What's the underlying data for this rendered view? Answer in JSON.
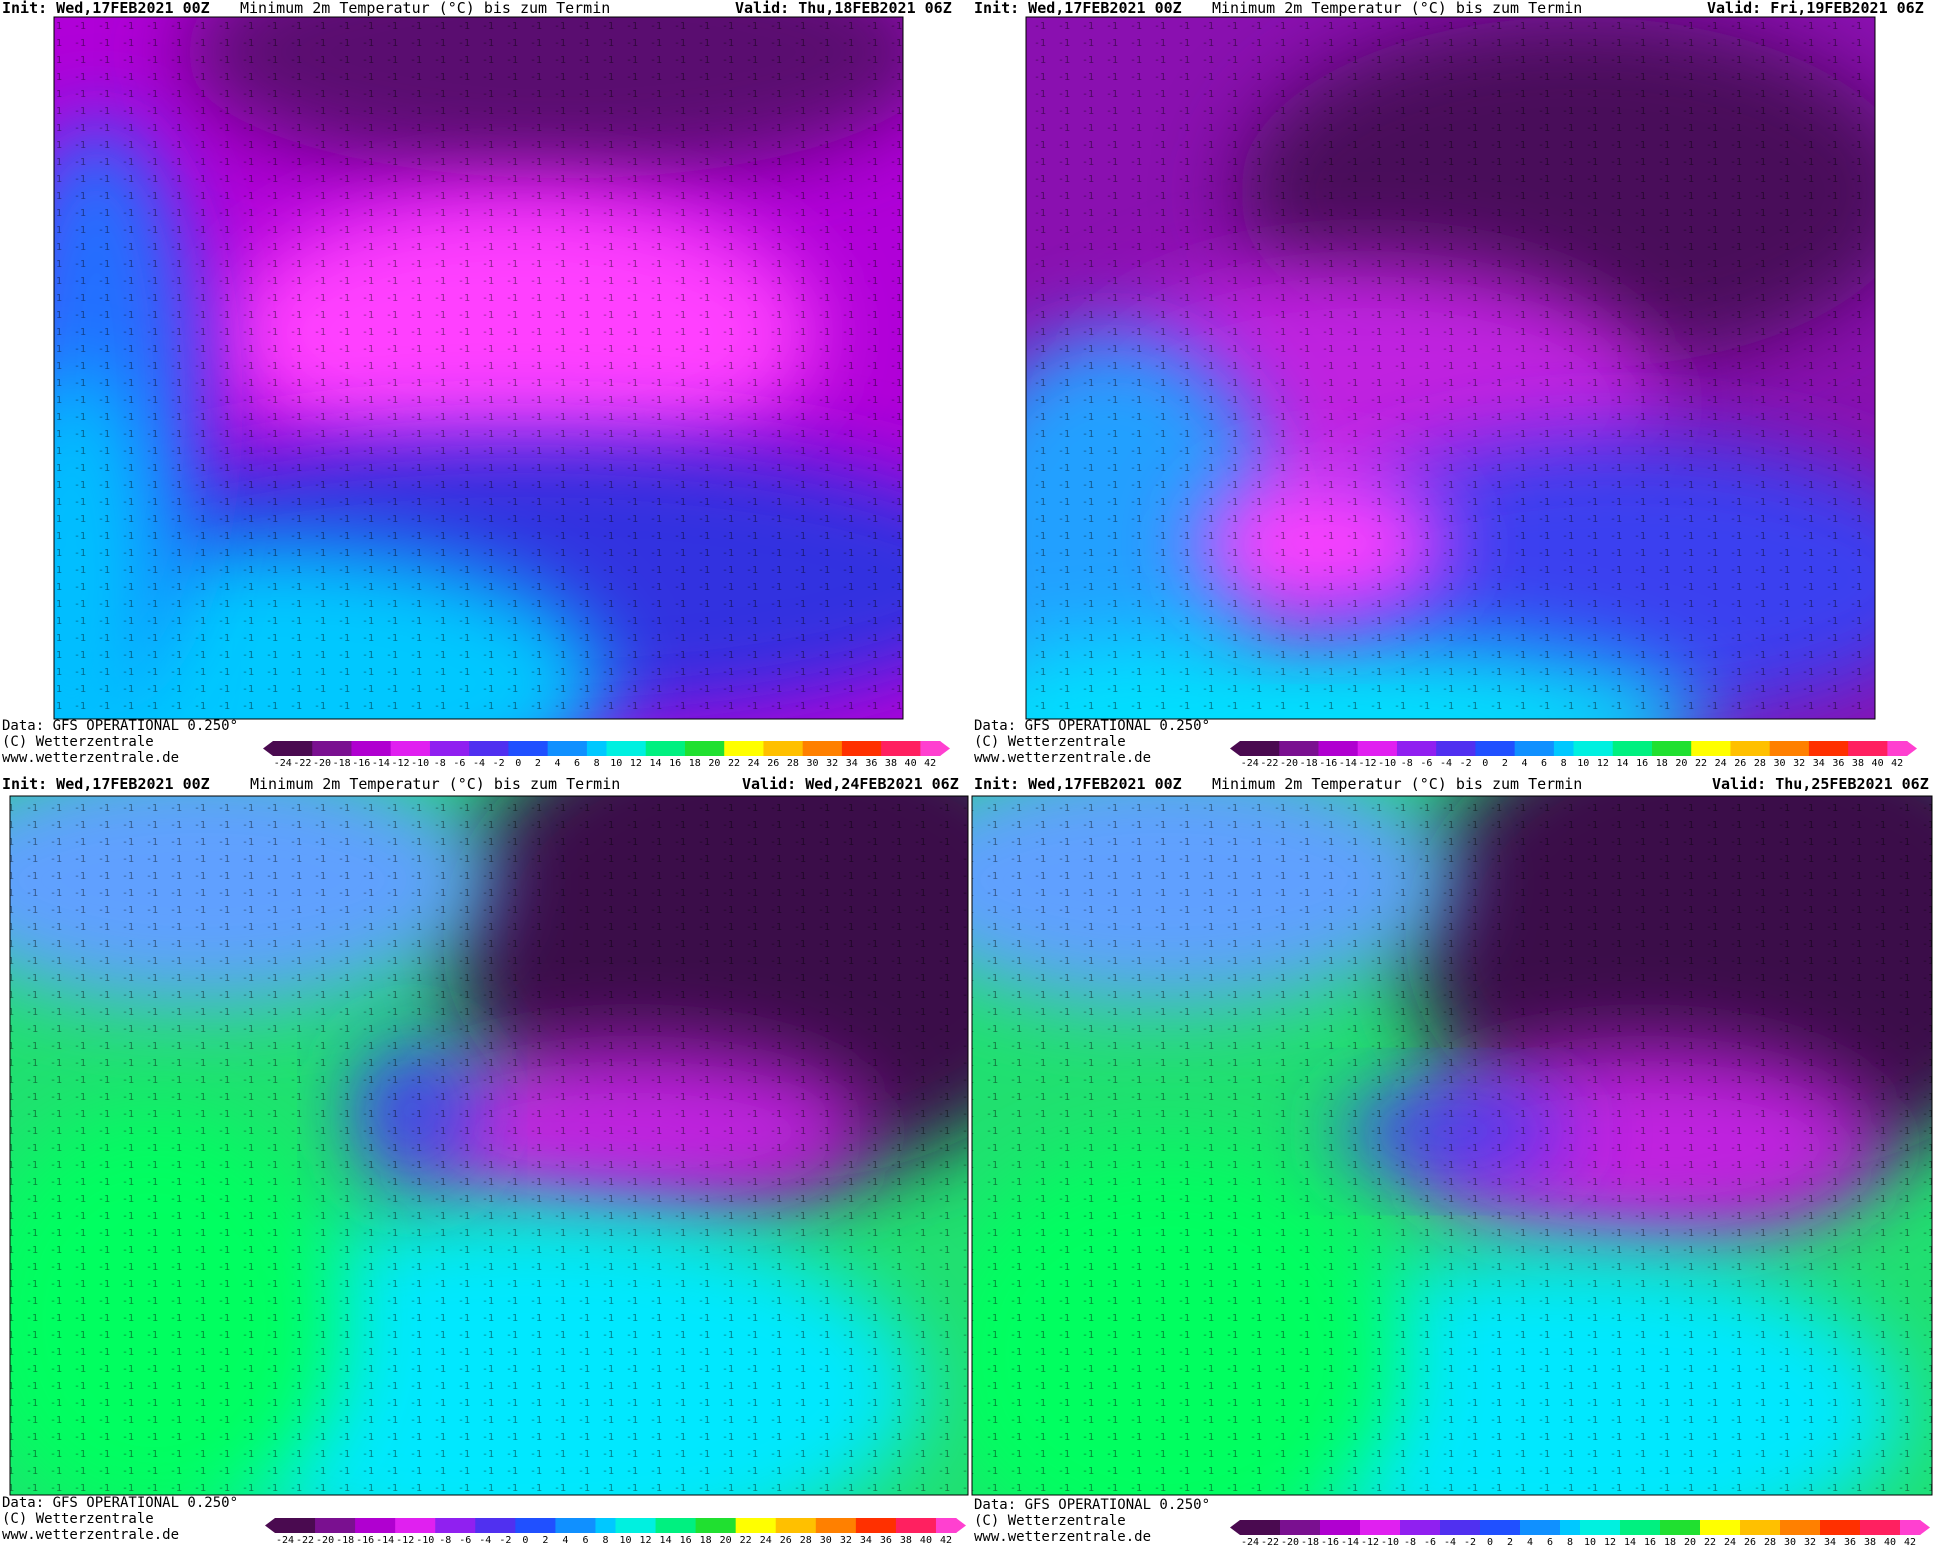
{
  "panels": [
    {
      "init": "Init: Wed,17FEB2021 00Z",
      "title": "Minimum 2m Temperatur (°C) bis zum Termin",
      "valid": "Valid: Thu,18FEB2021 06Z",
      "source": "Data: GFS OPERATIONAL 0.250°",
      "copyright": "(C) Wetterzentrale",
      "url": "www.wetterzentrale.de"
    },
    {
      "init": "Init: Wed,17FEB2021 00Z",
      "title": "Minimum 2m Temperatur (°C) bis zum Termin",
      "valid": "Valid: Fri,19FEB2021 06Z",
      "source": "Data: GFS OPERATIONAL 0.250°",
      "copyright": "(C) Wetterzentrale",
      "url": "www.wetterzentrale.de"
    },
    {
      "init": "Init: Wed,17FEB2021 00Z",
      "title": "Minimum 2m Temperatur (°C) bis zum Termin",
      "valid": "Valid: Wed,24FEB2021 06Z",
      "source": "Data: GFS OPERATIONAL 0.250°",
      "copyright": "(C) Wetterzentrale",
      "url": "www.wetterzentrale.de"
    },
    {
      "init": "Init: Wed,17FEB2021 00Z",
      "title": "Minimum 2m Temperatur (°C) bis zum Termin",
      "valid": "Valid: Thu,25FEB2021 06Z",
      "source": "Data: GFS OPERATIONAL 0.250°",
      "copyright": "(C) Wetterzentrale",
      "url": "www.wetterzentrale.de"
    }
  ],
  "colorbar": {
    "labels": [
      -24,
      -22,
      -20,
      -18,
      -16,
      -14,
      -12,
      -10,
      -8,
      -6,
      -4,
      -2,
      0,
      2,
      4,
      6,
      8,
      10,
      12,
      14,
      16,
      18,
      20,
      22,
      24,
      26,
      28,
      30,
      32,
      34,
      36,
      38,
      40,
      42
    ]
  }
}
